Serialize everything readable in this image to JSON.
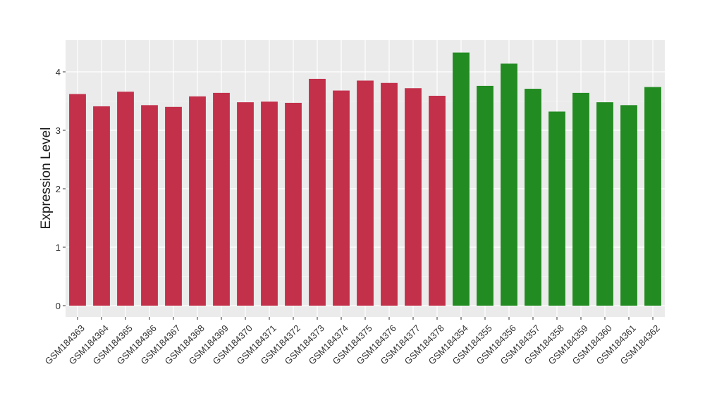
{
  "chart_data": {
    "type": "bar",
    "title": "",
    "xlabel": "",
    "ylabel": "Expression Level",
    "ylim": [
      0,
      4.5
    ],
    "yticks": [
      0,
      1,
      2,
      3,
      4
    ],
    "grid": true,
    "legend": "none",
    "categories": [
      "GSM184363",
      "GSM184364",
      "GSM184365",
      "GSM184366",
      "GSM184367",
      "GSM184368",
      "GSM184369",
      "GSM184370",
      "GSM184371",
      "GSM184372",
      "GSM184373",
      "GSM184374",
      "GSM184375",
      "GSM184376",
      "GSM184377",
      "GSM184378",
      "GSM184354",
      "GSM184355",
      "GSM184356",
      "GSM184357",
      "GSM184358",
      "GSM184359",
      "GSM184360",
      "GSM184361",
      "GSM184362"
    ],
    "values": [
      3.62,
      3.41,
      3.66,
      3.43,
      3.4,
      3.58,
      3.64,
      3.48,
      3.49,
      3.47,
      3.88,
      3.68,
      3.85,
      3.81,
      3.72,
      3.59,
      4.33,
      3.76,
      4.14,
      3.71,
      3.32,
      3.64,
      3.48,
      3.43,
      3.74
    ],
    "groups": [
      "red",
      "red",
      "red",
      "red",
      "red",
      "red",
      "red",
      "red",
      "red",
      "red",
      "red",
      "red",
      "red",
      "red",
      "red",
      "red",
      "green",
      "green",
      "green",
      "green",
      "green",
      "green",
      "green",
      "green",
      "green"
    ],
    "colors": {
      "red": "#c3304a",
      "green": "#228b22",
      "panel": "#ebebeb",
      "grid_major": "#ffffff",
      "text": "#1a1a1a",
      "tick_label": "#333333"
    }
  }
}
